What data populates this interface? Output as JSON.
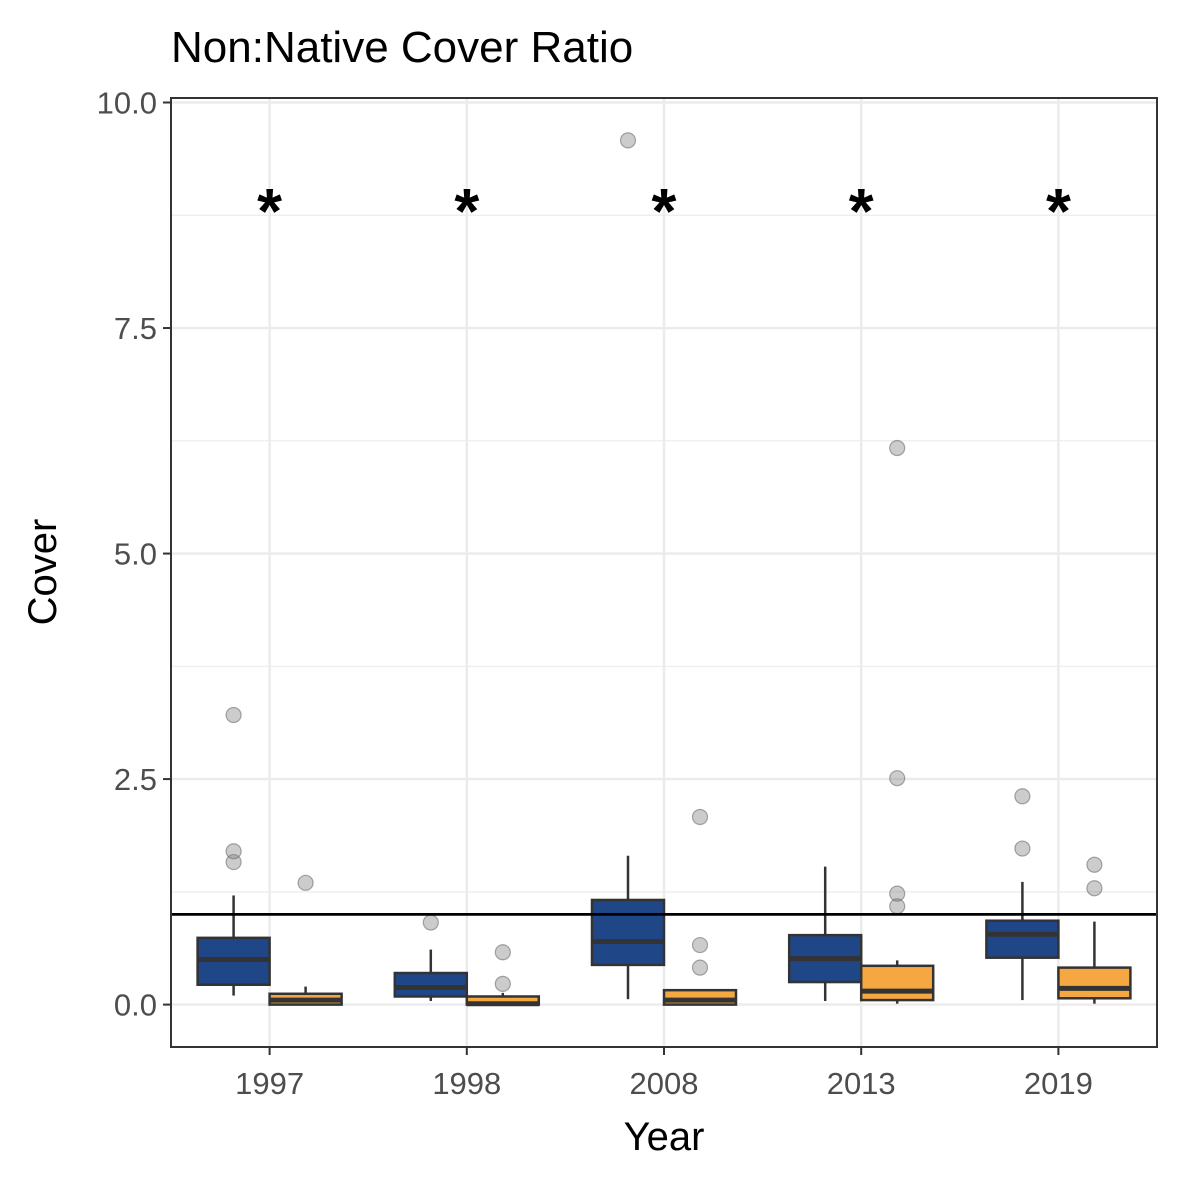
{
  "chart_data": {
    "type": "box",
    "title": "Non:Native Cover Ratio",
    "xlabel": "Year",
    "ylabel": "Cover",
    "categories": [
      "1997",
      "1998",
      "2008",
      "2013",
      "2019"
    ],
    "ylim": [
      -0.47,
      10.05
    ],
    "yticks": [
      0.0,
      2.5,
      5.0,
      7.5,
      10.0
    ],
    "ytick_labels": [
      "0.0",
      "2.5",
      "5.0",
      "7.5",
      "10.0"
    ],
    "grid": true,
    "reference_line": 1.0,
    "significance_labels": [
      "*",
      "*",
      "*",
      "*",
      "*"
    ],
    "series": [
      {
        "color": "#1f4788",
        "boxes": [
          {
            "min": 0.1,
            "q1": 0.22,
            "median": 0.5,
            "q3": 0.74,
            "max": 1.21,
            "outliers": [
              1.58,
              1.7,
              3.21
            ]
          },
          {
            "min": 0.04,
            "q1": 0.09,
            "median": 0.19,
            "q3": 0.35,
            "max": 0.61,
            "outliers": [
              0.91
            ]
          },
          {
            "min": 0.06,
            "q1": 0.44,
            "median": 0.7,
            "q3": 1.16,
            "max": 1.65,
            "outliers": [
              9.58
            ]
          },
          {
            "min": 0.04,
            "q1": 0.25,
            "median": 0.51,
            "q3": 0.77,
            "max": 1.53,
            "outliers": []
          },
          {
            "min": 0.05,
            "q1": 0.52,
            "median": 0.78,
            "q3": 0.93,
            "max": 1.36,
            "outliers": [
              1.73,
              2.31
            ]
          }
        ]
      },
      {
        "color": "#f5a742",
        "boxes": [
          {
            "min": 0.0,
            "q1": 0.0,
            "median": 0.05,
            "q3": 0.12,
            "max": 0.2,
            "outliers": [
              1.35
            ]
          },
          {
            "min": 0.0,
            "q1": 0.0,
            "median": 0.01,
            "q3": 0.09,
            "max": 0.13,
            "outliers": [
              0.23,
              0.58
            ]
          },
          {
            "min": 0.0,
            "q1": 0.0,
            "median": 0.05,
            "q3": 0.16,
            "max": 0.16,
            "outliers": [
              0.41,
              0.66,
              2.08
            ]
          },
          {
            "min": 0.01,
            "q1": 0.05,
            "median": 0.15,
            "q3": 0.43,
            "max": 0.49,
            "outliers": [
              1.09,
              1.23,
              2.51,
              6.17
            ]
          },
          {
            "min": 0.01,
            "q1": 0.07,
            "median": 0.18,
            "q3": 0.41,
            "max": 0.92,
            "outliers": [
              1.29,
              1.55
            ]
          }
        ]
      }
    ]
  }
}
